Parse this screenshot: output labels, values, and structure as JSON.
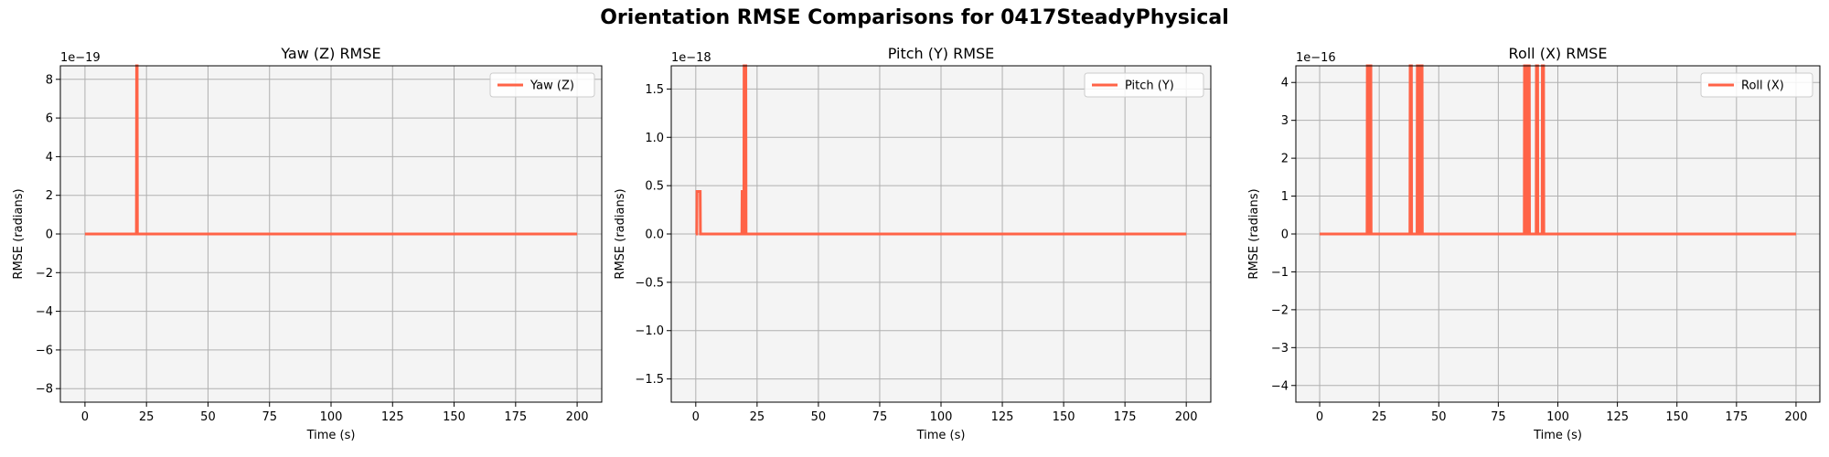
{
  "figure": {
    "title": "Orientation RMSE Comparisons for 0417SteadyPhysical",
    "background": "#ffffff",
    "axes_facecolor": "#f4f4f4",
    "line_color": "#ff6347",
    "grid_color": "#b0b0b0"
  },
  "chart_data": [
    {
      "type": "line",
      "title": "Yaw (Z) RMSE",
      "xlabel": "Time (s)",
      "ylabel": "RMSE (radians)",
      "xlim": [
        -10,
        210
      ],
      "ylim": [
        -8.7,
        8.7
      ],
      "y_offset_label": "1e−19",
      "xticks": [
        0,
        25,
        50,
        75,
        100,
        125,
        150,
        175,
        200
      ],
      "xtick_labels": [
        "0",
        "25",
        "50",
        "75",
        "100",
        "125",
        "150",
        "175",
        "200"
      ],
      "yticks": [
        -8,
        -6,
        -4,
        -2,
        0,
        2,
        4,
        6,
        8
      ],
      "ytick_labels": [
        "−8",
        "−6",
        "−4",
        "−2",
        "0",
        "2",
        "4",
        "6",
        "8"
      ],
      "grid": true,
      "legend_position": "upper right",
      "series": [
        {
          "name": "Yaw (Z)",
          "color": "#ff6347",
          "x": [
            0,
            20.9,
            21.0,
            21.2,
            21.3,
            200
          ],
          "y": [
            0,
            0,
            8.7,
            8.7,
            0,
            0
          ]
        }
      ]
    },
    {
      "type": "line",
      "title": "Pitch (Y) RMSE",
      "xlabel": "Time (s)",
      "ylabel": "RMSE (radians)",
      "xlim": [
        -10,
        210
      ],
      "ylim": [
        -1.74,
        1.74
      ],
      "y_offset_label": "1e−18",
      "xticks": [
        0,
        25,
        50,
        75,
        100,
        125,
        150,
        175,
        200
      ],
      "xtick_labels": [
        "0",
        "25",
        "50",
        "75",
        "100",
        "125",
        "150",
        "175",
        "200"
      ],
      "yticks": [
        -1.5,
        -1.0,
        -0.5,
        0.0,
        0.5,
        1.0,
        1.5
      ],
      "ytick_labels": [
        "−1.5",
        "−1.0",
        "−0.5",
        "0.0",
        "0.5",
        "1.0",
        "1.5"
      ],
      "grid": true,
      "legend_position": "upper right",
      "series": [
        {
          "name": "Pitch (Y)",
          "color": "#ff6347",
          "x": [
            0,
            0.4,
            0.5,
            1.8,
            1.9,
            18.8,
            18.9,
            19.2,
            19.3,
            19.6,
            19.7,
            20.4,
            20.5,
            200
          ],
          "y": [
            0,
            0,
            0.44,
            0.44,
            0,
            0,
            0.44,
            0.44,
            0,
            0,
            1.74,
            1.74,
            0,
            0
          ]
        }
      ]
    },
    {
      "type": "line",
      "title": "Roll (X) RMSE",
      "xlabel": "Time (s)",
      "ylabel": "RMSE (radians)",
      "xlim": [
        -10,
        210
      ],
      "ylim": [
        -4.44,
        4.44
      ],
      "y_offset_label": "1e−16",
      "xticks": [
        0,
        25,
        50,
        75,
        100,
        125,
        150,
        175,
        200
      ],
      "xtick_labels": [
        "0",
        "25",
        "50",
        "75",
        "100",
        "125",
        "150",
        "175",
        "200"
      ],
      "yticks": [
        -4,
        -3,
        -2,
        -1,
        0,
        1,
        2,
        3,
        4
      ],
      "ytick_labels": [
        "−4",
        "−3",
        "−2",
        "−1",
        "0",
        "1",
        "2",
        "3",
        "4"
      ],
      "grid": true,
      "legend_position": "upper right",
      "series": [
        {
          "name": "Roll (X)",
          "color": "#ff6347",
          "x": [
            0,
            19.9,
            20.0,
            20.5,
            20.6,
            20.9,
            21.0,
            21.5,
            21.6,
            37.9,
            38.0,
            38.5,
            38.6,
            40.9,
            41.0,
            41.5,
            41.6,
            42.4,
            42.5,
            43.0,
            43.1,
            85.9,
            86.0,
            86.5,
            86.6,
            87.4,
            87.5,
            88.0,
            88.1,
            90.9,
            91.0,
            91.5,
            91.6,
            93.4,
            93.5,
            94.0,
            94.1,
            200
          ],
          "y": [
            0,
            0,
            4.44,
            4.44,
            0,
            0,
            4.44,
            4.44,
            0,
            0,
            4.44,
            4.44,
            0,
            0,
            4.44,
            4.44,
            0,
            0,
            4.44,
            4.44,
            0,
            0,
            4.44,
            4.44,
            0,
            0,
            4.44,
            4.44,
            0,
            0,
            4.44,
            4.44,
            0,
            0,
            4.44,
            4.44,
            0,
            0
          ]
        }
      ]
    }
  ]
}
